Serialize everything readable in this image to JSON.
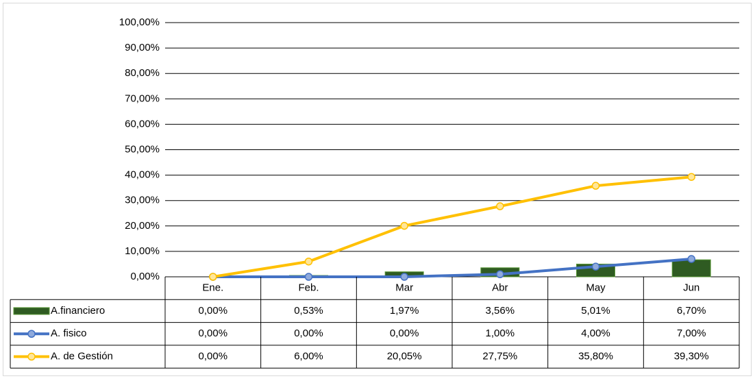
{
  "chart_data": {
    "type": "bar_line_table",
    "categories": [
      "Ene.",
      "Feb.",
      "Mar",
      "Abr",
      "May",
      "Jun"
    ],
    "series": [
      {
        "name": "A.financiero",
        "type": "bar",
        "color": "#2f5b22",
        "values": [
          0,
          0.53,
          1.97,
          3.56,
          5.01,
          6.7
        ],
        "value_labels": [
          "0,00%",
          "0,53%",
          "1,97%",
          "3,56%",
          "5,01%",
          "6,70%"
        ]
      },
      {
        "name": "A. fisico",
        "type": "line",
        "color": "#4472c4",
        "marker_color": "#8faadc",
        "values": [
          0,
          0,
          0,
          1,
          4,
          7
        ],
        "value_labels": [
          "0,00%",
          "0,00%",
          "0,00%",
          "1,00%",
          "4,00%",
          "7,00%"
        ]
      },
      {
        "name": "A. de Gestión",
        "type": "line",
        "color": "#ffc000",
        "marker_color": "#ffe699",
        "values": [
          0,
          6,
          20.05,
          27.75,
          35.8,
          39.3
        ],
        "value_labels": [
          "0,00%",
          "6,00%",
          "20,05%",
          "27,75%",
          "35,80%",
          "39,30%"
        ]
      }
    ],
    "ylim": [
      0,
      100
    ],
    "yticks": [
      {
        "value": 0,
        "label": "0,00%"
      },
      {
        "value": 10,
        "label": "10,00%"
      },
      {
        "value": 20,
        "label": "20,00%"
      },
      {
        "value": 30,
        "label": "30,00%"
      },
      {
        "value": 40,
        "label": "40,00%"
      },
      {
        "value": 50,
        "label": "50,00%"
      },
      {
        "value": 60,
        "label": "60,00%"
      },
      {
        "value": 70,
        "label": "70,00%"
      },
      {
        "value": 80,
        "label": "80,00%"
      },
      {
        "value": 90,
        "label": "90,00%"
      },
      {
        "value": 100,
        "label": "100,00%"
      }
    ],
    "grid": true
  }
}
